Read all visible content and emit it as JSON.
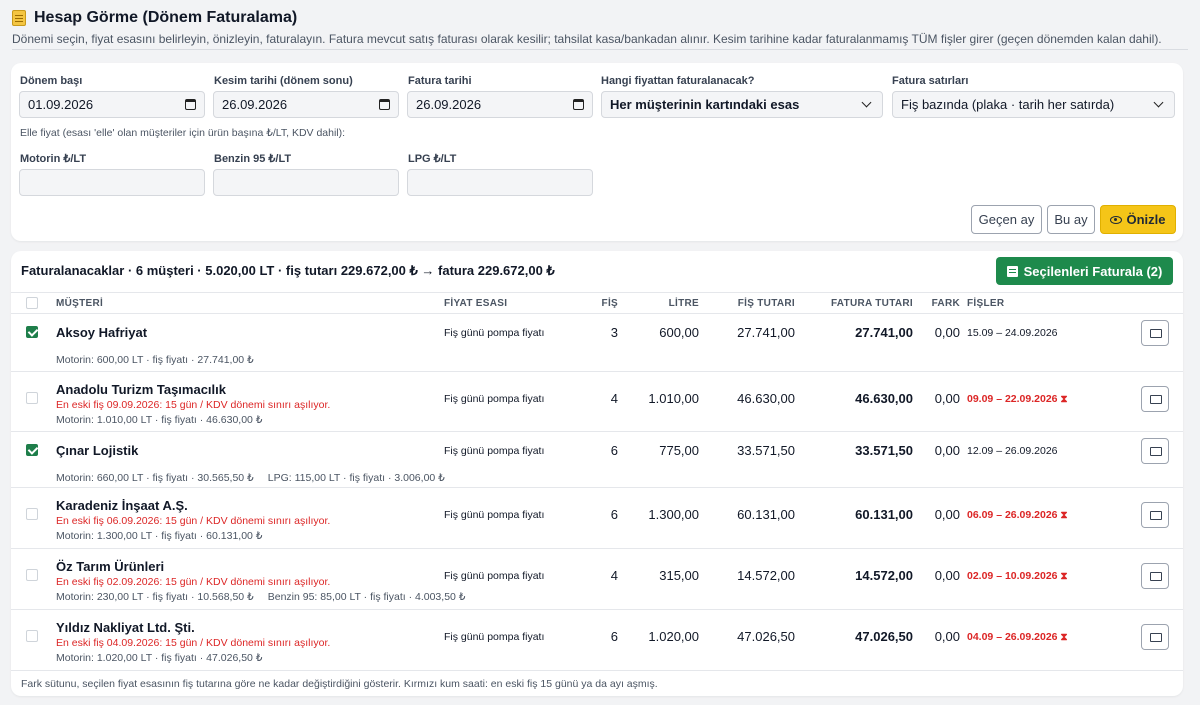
{
  "header": {
    "title": "Hesap Görme (Dönem Faturalama)",
    "subtitle": "Dönemi seçin, fiyat esasını belirleyin, önizleyin, faturalayın. Fatura mevcut satış faturası olarak kesilir; tahsilat kasa/bankadan alınır. Kesim tarihine kadar faturalanmamış TÜM fişler girer (geçen dönemden kalan dahil)."
  },
  "form": {
    "period_start_label": "Dönem başı",
    "period_start_value": "01.09.2026",
    "cutoff_label": "Kesim tarihi (dönem sonu)",
    "cutoff_value": "26.09.2026",
    "invoice_date_label": "Fatura tarihi",
    "invoice_date_value": "26.09.2026",
    "price_basis_label": "Hangi fiyattan faturalanacak?",
    "price_basis_value": "Her müşterinin kartındaki esas",
    "lines_label": "Fatura satırları",
    "lines_value": "Fiş bazında (plaka · tarih her satırda)",
    "manual_note": "Elle fiyat (esası 'elle' olan müşteriler için ürün başına ₺/LT, KDV dahil):",
    "diesel_label": "Motorin ₺/LT",
    "diesel_value": "",
    "gasoline_label": "Benzin 95 ₺/LT",
    "gasoline_value": "",
    "lpg_label": "LPG ₺/LT",
    "lpg_value": "",
    "btn_prev_month": "Geçen ay",
    "btn_this_month": "Bu ay",
    "btn_preview": "Önizle"
  },
  "list": {
    "title_prefix": "Faturalanacaklar · 6 müşteri · 5.020,00 LT · fiş tutarı ",
    "receipt_total": "229.672,00 ₺",
    "arrow_text": " → fatura ",
    "invoice_total": "229.672,00 ₺",
    "invoice_selected_button": "Seçilenleri Faturala (2)",
    "columns": {
      "customer": "MÜŞTERİ",
      "basis": "FİYAT ESASI",
      "receipts": "FİŞ",
      "liters": "LİTRE",
      "receipt_amount": "FİŞ TUTARI",
      "invoice_amount": "FATURA TUTARI",
      "diff": "FARK",
      "slips": "FİŞLER"
    },
    "rows": [
      {
        "checked": true,
        "customer": "Aksoy Hafriyat",
        "warning": "",
        "basis": "Fiş günü pompa fiyatı",
        "receipts": "3",
        "liters": "600,00",
        "receipt_amount": "27.741,00",
        "invoice_amount": "27.741,00",
        "diff": "0,00",
        "dates": "15.09 – 24.09.2026",
        "overdue": false,
        "details": [
          "Motorin: 600,00 LT · fiş fiyatı · 27.741,00 ₺"
        ]
      },
      {
        "checked": false,
        "customer": "Anadolu Turizm Taşımacılık",
        "warning": "En eski fiş 09.09.2026: 15 gün / KDV dönemi sınırı aşılıyor.",
        "basis": "Fiş günü pompa fiyatı",
        "receipts": "4",
        "liters": "1.010,00",
        "receipt_amount": "46.630,00",
        "invoice_amount": "46.630,00",
        "diff": "0,00",
        "dates": "09.09 – 22.09.2026",
        "overdue": true,
        "details": [
          "Motorin: 1.010,00 LT · fiş fiyatı · 46.630,00 ₺"
        ]
      },
      {
        "checked": true,
        "customer": "Çınar Lojistik",
        "warning": "",
        "basis": "Fiş günü pompa fiyatı",
        "receipts": "6",
        "liters": "775,00",
        "receipt_amount": "33.571,50",
        "invoice_amount": "33.571,50",
        "diff": "0,00",
        "dates": "12.09 – 26.09.2026",
        "overdue": false,
        "details": [
          "Motorin: 660,00 LT · fiş fiyatı · 30.565,50 ₺",
          "LPG: 115,00 LT · fiş fiyatı · 3.006,00 ₺"
        ]
      },
      {
        "checked": false,
        "customer": "Karadeniz İnşaat A.Ş.",
        "warning": "En eski fiş 06.09.2026: 15 gün / KDV dönemi sınırı aşılıyor.",
        "basis": "Fiş günü pompa fiyatı",
        "receipts": "6",
        "liters": "1.300,00",
        "receipt_amount": "60.131,00",
        "invoice_amount": "60.131,00",
        "diff": "0,00",
        "dates": "06.09 – 26.09.2026",
        "overdue": true,
        "details": [
          "Motorin: 1.300,00 LT · fiş fiyatı · 60.131,00 ₺"
        ]
      },
      {
        "checked": false,
        "customer": "Öz Tarım Ürünleri",
        "warning": "En eski fiş 02.09.2026: 15 gün / KDV dönemi sınırı aşılıyor.",
        "basis": "Fiş günü pompa fiyatı",
        "receipts": "4",
        "liters": "315,00",
        "receipt_amount": "14.572,00",
        "invoice_amount": "14.572,00",
        "diff": "0,00",
        "dates": "02.09 – 10.09.2026",
        "overdue": true,
        "details": [
          "Motorin: 230,00 LT · fiş fiyatı · 10.568,50 ₺",
          "Benzin 95: 85,00 LT · fiş fiyatı · 4.003,50 ₺"
        ]
      },
      {
        "checked": false,
        "customer": "Yıldız Nakliyat Ltd. Şti.",
        "warning": "En eski fiş 04.09.2026: 15 gün / KDV dönemi sınırı aşılıyor.",
        "basis": "Fiş günü pompa fiyatı",
        "receipts": "6",
        "liters": "1.020,00",
        "receipt_amount": "47.026,50",
        "invoice_amount": "47.026,50",
        "diff": "0,00",
        "dates": "04.09 – 26.09.2026",
        "overdue": true,
        "details": [
          "Motorin: 1.020,00 LT · fiş fiyatı · 47.026,50 ₺"
        ]
      }
    ],
    "overdue_glyph": "⧗",
    "footnote": "Fark sütunu, seçilen fiyat esasının fiş tutarına göre ne kadar değiştirdiğini gösterir. Kırmızı kum saati: en eski fiş 15 günü ya da ayı aşmış."
  }
}
